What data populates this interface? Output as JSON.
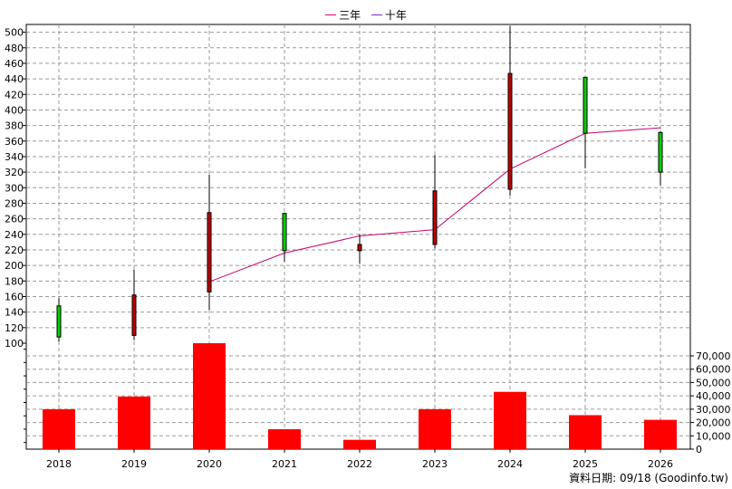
{
  "legend": [
    {
      "label": "三年",
      "color": "#e0007a"
    },
    {
      "label": "十年",
      "color": "#7a2ad0"
    }
  ],
  "footer_text": "資料日期: 09/18 (Goodinfo.tw)",
  "colors": {
    "up_candle": "#00d000",
    "down_candle": "#c00000",
    "volume_bar": "#ff0000",
    "ma_line": "#c8006e",
    "grid": "#9a9a9a"
  },
  "chart_data": [
    {
      "type": "candlestick",
      "categories": [
        "2018",
        "2019",
        "2020",
        "2021",
        "2022",
        "2023",
        "2024",
        "2025",
        "2026"
      ],
      "ylim": [
        100,
        510
      ],
      "yticks": [
        100,
        120,
        140,
        160,
        180,
        200,
        220,
        240,
        260,
        280,
        300,
        320,
        340,
        360,
        380,
        400,
        420,
        440,
        460,
        480,
        500
      ],
      "grid": true,
      "candles": [
        {
          "open": 108,
          "close": 148,
          "high": 158,
          "low": 102
        },
        {
          "open": 162,
          "close": 110,
          "high": 195,
          "low": 104
        },
        {
          "open": 268,
          "close": 166,
          "high": 317,
          "low": 143
        },
        {
          "open": 219,
          "close": 267,
          "high": 267,
          "low": 205
        },
        {
          "open": 227,
          "close": 219,
          "high": 240,
          "low": 202
        },
        {
          "open": 296,
          "close": 227,
          "high": 342,
          "low": 222
        },
        {
          "open": 447,
          "close": 298,
          "high": 508,
          "low": 290
        },
        {
          "open": 370,
          "close": 442,
          "high": 442,
          "low": 325
        },
        {
          "open": 320,
          "close": 371,
          "high": 373,
          "low": 303
        }
      ],
      "series": [
        {
          "name": "三年",
          "values": [
            null,
            null,
            179,
            216,
            238,
            246,
            324,
            370,
            377
          ]
        }
      ]
    },
    {
      "type": "bar",
      "categories": [
        "2018",
        "2019",
        "2020",
        "2021",
        "2022",
        "2023",
        "2024",
        "2025",
        "2026"
      ],
      "values": [
        30000,
        39500,
        79500,
        15000,
        7000,
        30000,
        43000,
        25500,
        22000
      ],
      "ylim": [
        0,
        79500
      ],
      "yticks": [
        0,
        10000,
        20000,
        30000,
        40000,
        50000,
        60000,
        70000
      ],
      "ytick_labels": [
        "0",
        "10,000",
        "20,000",
        "30,000",
        "40,000",
        "50,000",
        "60,000",
        "70,000"
      ],
      "grid": true
    }
  ]
}
